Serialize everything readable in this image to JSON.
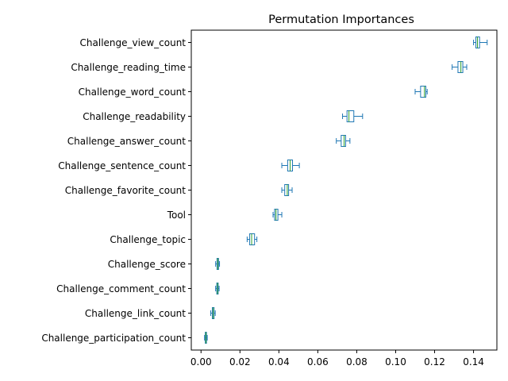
{
  "chart_data": {
    "type": "boxplot",
    "orientation": "horizontal",
    "title": "Permutation Importances",
    "xlabel": "",
    "ylabel": "",
    "xlim": [
      -0.005,
      0.152
    ],
    "x_ticks": [
      0.0,
      0.02,
      0.04,
      0.06,
      0.08,
      0.1,
      0.12,
      0.14
    ],
    "x_tick_labels": [
      "0.00",
      "0.02",
      "0.04",
      "0.06",
      "0.08",
      "0.10",
      "0.12",
      "0.14"
    ],
    "grid": false,
    "colors": {
      "box": "#1f77b4",
      "median": "#2ca02c",
      "axis": "#000000"
    },
    "categories": [
      "Challenge_view_count",
      "Challenge_reading_time",
      "Challenge_word_count",
      "Challenge_readability",
      "Challenge_answer_count",
      "Challenge_sentence_count",
      "Challenge_favorite_count",
      "Tool",
      "Challenge_topic",
      "Challenge_score",
      "Challenge_comment_count",
      "Challenge_link_count",
      "Challenge_participation_count"
    ],
    "boxes": [
      {
        "whislo": 0.14,
        "q1": 0.1412,
        "med": 0.142,
        "q3": 0.1431,
        "whishi": 0.147
      },
      {
        "whislo": 0.129,
        "q1": 0.132,
        "med": 0.1335,
        "q3": 0.1345,
        "whishi": 0.1365
      },
      {
        "whislo": 0.11,
        "q1": 0.1128,
        "med": 0.1148,
        "q3": 0.1155,
        "whishi": 0.1162
      },
      {
        "whislo": 0.0727,
        "q1": 0.075,
        "med": 0.076,
        "q3": 0.0785,
        "whishi": 0.083
      },
      {
        "whislo": 0.0695,
        "q1": 0.072,
        "med": 0.0735,
        "q3": 0.0743,
        "whishi": 0.0765
      },
      {
        "whislo": 0.0415,
        "q1": 0.0445,
        "med": 0.0458,
        "q3": 0.047,
        "whishi": 0.0505
      },
      {
        "whislo": 0.0415,
        "q1": 0.043,
        "med": 0.0443,
        "q3": 0.045,
        "whishi": 0.0468
      },
      {
        "whislo": 0.037,
        "q1": 0.0378,
        "med": 0.0385,
        "q3": 0.0395,
        "whishi": 0.0415
      },
      {
        "whislo": 0.0237,
        "q1": 0.025,
        "med": 0.026,
        "q3": 0.0275,
        "whishi": 0.0287
      },
      {
        "whislo": 0.0075,
        "q1": 0.0082,
        "med": 0.0086,
        "q3": 0.009,
        "whishi": 0.0095
      },
      {
        "whislo": 0.0075,
        "q1": 0.0081,
        "med": 0.0085,
        "q3": 0.0088,
        "whishi": 0.0093
      },
      {
        "whislo": 0.005,
        "q1": 0.0058,
        "med": 0.0063,
        "q3": 0.0067,
        "whishi": 0.0073
      },
      {
        "whislo": 0.0018,
        "q1": 0.0022,
        "med": 0.0025,
        "q3": 0.0028,
        "whishi": 0.0032
      }
    ]
  }
}
